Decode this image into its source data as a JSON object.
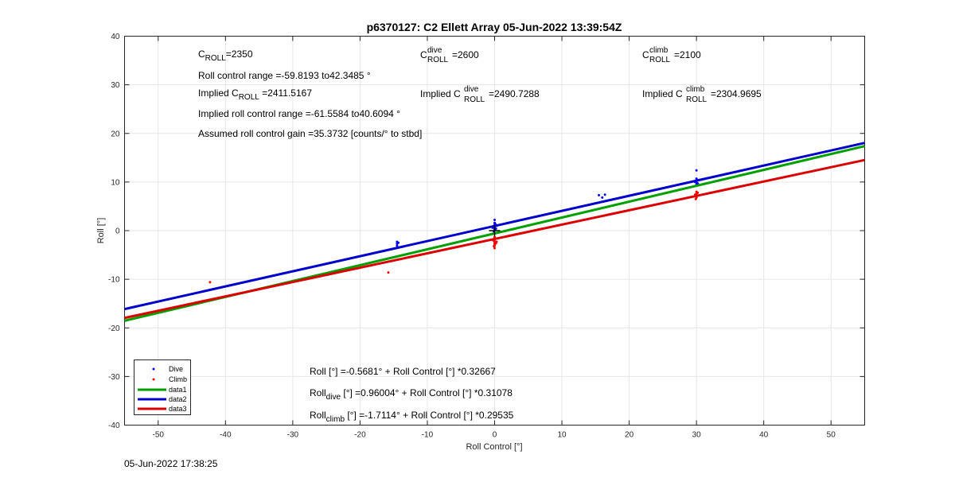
{
  "chart_data": {
    "type": "scatter",
    "title": "p6370127: C2 Ellett Array 05-Jun-2022 13:39:54Z",
    "xlabel": "Roll Control [°]",
    "ylabel": "Roll [°]",
    "xlim": [
      -55,
      55
    ],
    "ylim": [
      -40,
      40
    ],
    "xticks": [
      -50,
      -40,
      -30,
      -20,
      -10,
      0,
      10,
      20,
      30,
      40,
      50
    ],
    "yticks": [
      -40,
      -30,
      -20,
      -10,
      0,
      10,
      20,
      30,
      40
    ],
    "grid": true,
    "legend_position": "bottom-left",
    "series": [
      {
        "name": "Dive",
        "kind": "points",
        "color": "#0000ff",
        "points": [
          [
            -14.5,
            -2.3
          ],
          [
            -14.5,
            -2.7
          ],
          [
            -14.5,
            -3.1
          ],
          [
            -14.3,
            -2.5
          ],
          [
            0,
            0.2
          ],
          [
            0,
            0.5
          ],
          [
            0,
            0.8
          ],
          [
            0,
            1.2
          ],
          [
            0,
            1.6
          ],
          [
            0,
            2.2
          ],
          [
            -0.2,
            0.9
          ],
          [
            0.2,
            0.4
          ],
          [
            -0.3,
            0.6
          ],
          [
            0.3,
            1.0
          ],
          [
            -0.1,
            -0.2
          ],
          [
            0.1,
            1.4
          ],
          [
            15.5,
            7.3
          ],
          [
            16,
            6.8
          ],
          [
            16.4,
            7.4
          ],
          [
            30,
            9.5
          ],
          [
            30,
            9.9
          ],
          [
            30,
            10.3
          ],
          [
            30,
            10.7
          ],
          [
            29.8,
            10.0
          ],
          [
            30.2,
            9.7
          ],
          [
            30,
            12.4
          ]
        ]
      },
      {
        "name": "Climb",
        "kind": "points",
        "color": "#ff0000",
        "points": [
          [
            -42.3,
            -10.6
          ],
          [
            -15.8,
            -8.6
          ],
          [
            0,
            -3.6
          ],
          [
            0,
            -3.1
          ],
          [
            0,
            -2.8
          ],
          [
            0,
            -2.5
          ],
          [
            0,
            -2.2
          ],
          [
            0,
            -1.9
          ],
          [
            0,
            -1.6
          ],
          [
            0,
            -1.3
          ],
          [
            -0.2,
            -2.0
          ],
          [
            0.2,
            -2.6
          ],
          [
            -0.3,
            -1.8
          ],
          [
            0.3,
            -2.3
          ],
          [
            -0.1,
            -3.2
          ],
          [
            30,
            6.8
          ],
          [
            30,
            7.2
          ],
          [
            30,
            7.6
          ],
          [
            30,
            8.0
          ],
          [
            29.8,
            7.4
          ],
          [
            30.2,
            7.8
          ],
          [
            29.9,
            6.5
          ]
        ]
      },
      {
        "name": "data1",
        "kind": "line",
        "color": "#00a000",
        "intercept": -0.5681,
        "slope": 0.32667
      },
      {
        "name": "data2",
        "kind": "line",
        "color": "#0000cc",
        "intercept": 0.96004,
        "slope": 0.31078
      },
      {
        "name": "data3",
        "kind": "line",
        "color": "#dd0000",
        "intercept": -1.7114,
        "slope": 0.29535
      }
    ],
    "annotations": {
      "c_roll": {
        "base": "C",
        "sub": "ROLL",
        "value": "=2350"
      },
      "c_roll_dive": {
        "base": "C",
        "sup": "dive",
        "sub": "ROLL",
        "value": " =2600"
      },
      "c_roll_climb": {
        "base": "C",
        "sup": "climb",
        "sub": "ROLL",
        "value": " =2100"
      },
      "roll_control_range": "Roll control range =-59.8193 to42.3485 °",
      "implied_c_roll": {
        "prefix": "Implied C",
        "sub": "ROLL",
        "value": " =2411.5167"
      },
      "implied_c_roll_dive": {
        "prefix": "Implied C",
        "sup": "dive",
        "sub": "ROLL",
        "value": " =2490.7288"
      },
      "implied_c_roll_climb": {
        "prefix": "Implied C",
        "sup": "climb",
        "sub": "ROLL",
        "value": " =2304.9695"
      },
      "implied_range": "Implied roll control range =-61.5584 to40.6094 °",
      "gain": "Assumed roll control gain =35.3732 [counts/° to stbd]",
      "fit_all": "Roll [°] =-0.5681° + Roll Control [°] *0.32667",
      "fit_dive": {
        "base": "Roll",
        "sub": "dive",
        "rest": " [°] =0.96004° + Roll Control [°] *0.31078"
      },
      "fit_climb": {
        "base": "Roll",
        "sub": "climb",
        "rest": " [°] =-1.7114° + Roll Control [°] *0.29535"
      }
    },
    "center_marker": [
      0,
      0
    ]
  },
  "timestamp": "05-Jun-2022 17:38:25"
}
